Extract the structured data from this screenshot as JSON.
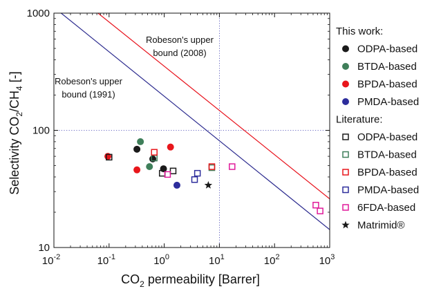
{
  "chart_data": {
    "type": "scatter",
    "x_axis": {
      "label_parts": [
        "CO",
        "2",
        " permeability [Barrer]"
      ],
      "scale": "log",
      "range": [
        0.01,
        1000
      ],
      "ticks": [
        {
          "value": 0.01,
          "base": "10",
          "exp": "-2"
        },
        {
          "value": 0.1,
          "base": "10",
          "exp": "-1"
        },
        {
          "value": 1,
          "base": "10",
          "exp": "0"
        },
        {
          "value": 10,
          "base": "10",
          "exp": "1"
        },
        {
          "value": 100,
          "base": "10",
          "exp": "2"
        },
        {
          "value": 1000,
          "base": "10",
          "exp": "3"
        }
      ]
    },
    "y_axis": {
      "label_parts": [
        "Selectivity CO",
        "2",
        "/CH",
        "4",
        " [-]"
      ],
      "scale": "log",
      "range": [
        10,
        1000
      ],
      "ticks": [
        {
          "value": 10,
          "label": "10"
        },
        {
          "value": 100,
          "label": "100"
        },
        {
          "value": 1000,
          "label": "1000"
        }
      ]
    },
    "grid": {
      "type": "dotted",
      "x_values": [
        10
      ],
      "y_values": [
        100
      ]
    },
    "bounds": [
      {
        "name": "Robeson's upper bound (2008)",
        "label_lines": [
          "Robeson's upper",
          "bound (2008)"
        ],
        "color": "#e8101a",
        "points": [
          [
            0.063,
            1000
          ],
          [
            1000,
            26
          ]
        ]
      },
      {
        "name": "Robeson's upper bound (1991)",
        "label_lines": [
          "Robeson's upper",
          "bound (1991)"
        ],
        "color": "#2b2a8e",
        "points": [
          [
            0.0135,
            1000
          ],
          [
            1000,
            14.2
          ]
        ]
      }
    ],
    "legend": {
      "position": "right",
      "headers": [
        "This work:",
        "Literature:"
      ],
      "entries": [
        {
          "group": 0,
          "name": "ODPA-based",
          "marker": "circle",
          "color": "#1a1a1a",
          "filled": true
        },
        {
          "group": 0,
          "name": "BTDA-based",
          "marker": "circle",
          "color": "#3f7f5a",
          "filled": true
        },
        {
          "group": 0,
          "name": "BPDA-based",
          "marker": "circle",
          "color": "#e8161b",
          "filled": true
        },
        {
          "group": 0,
          "name": "PMDA-based",
          "marker": "circle",
          "color": "#2d2d9c",
          "filled": true
        },
        {
          "group": 1,
          "name": "ODPA-based",
          "marker": "square",
          "color": "#1a1a1a",
          "filled": false
        },
        {
          "group": 1,
          "name": "BTDA-based",
          "marker": "square",
          "color": "#3f7f5a",
          "filled": false
        },
        {
          "group": 1,
          "name": "BPDA-based",
          "marker": "square",
          "color": "#e8161b",
          "filled": false
        },
        {
          "group": 1,
          "name": "PMDA-based",
          "marker": "square",
          "color": "#2d2d9c",
          "filled": false
        },
        {
          "group": 1,
          "name": "6FDA-based",
          "marker": "square",
          "color": "#e01a9a",
          "filled": false
        },
        {
          "group": 1,
          "name": "Matrimid®",
          "marker": "star",
          "color": "#1a1a1a",
          "filled": true
        }
      ]
    },
    "series": [
      {
        "legend_index": 0,
        "points": [
          [
            0.32,
            69
          ],
          [
            0.62,
            57
          ],
          [
            0.97,
            47
          ]
        ]
      },
      {
        "legend_index": 1,
        "points": [
          [
            0.37,
            80
          ],
          [
            0.54,
            49
          ]
        ]
      },
      {
        "legend_index": 2,
        "points": [
          [
            0.095,
            60
          ],
          [
            0.32,
            46
          ],
          [
            1.3,
            72
          ]
        ]
      },
      {
        "legend_index": 3,
        "points": [
          [
            1.7,
            34
          ]
        ]
      },
      {
        "legend_index": 4,
        "points": [
          [
            0.1,
            59
          ],
          [
            0.92,
            43
          ],
          [
            1.45,
            45
          ]
        ]
      },
      {
        "legend_index": 5,
        "points": [
          [
            0.66,
            58
          ],
          [
            7.3,
            48
          ]
        ]
      },
      {
        "legend_index": 6,
        "points": [
          [
            0.66,
            65
          ],
          [
            7.3,
            49
          ]
        ]
      },
      {
        "legend_index": 7,
        "points": [
          [
            3.55,
            38
          ],
          [
            4.0,
            43
          ]
        ]
      },
      {
        "legend_index": 8,
        "points": [
          [
            1.15,
            42
          ],
          [
            17,
            49
          ],
          [
            560,
            23
          ],
          [
            670,
            20.5
          ]
        ]
      },
      {
        "legend_index": 9,
        "points": [
          [
            6.3,
            34
          ]
        ]
      }
    ]
  }
}
